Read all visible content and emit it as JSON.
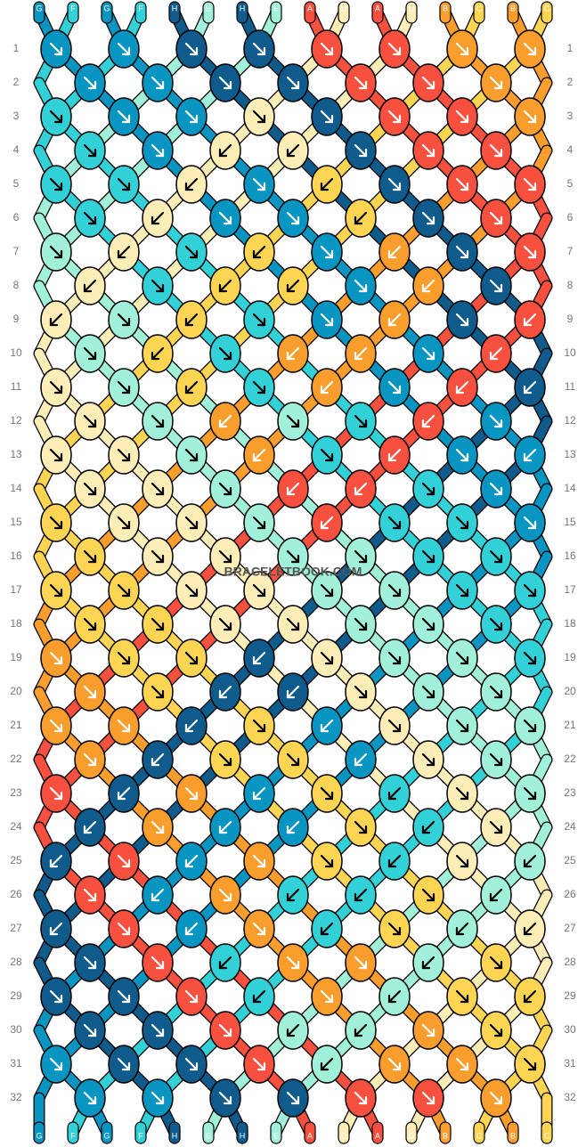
{
  "colors": {
    "A": "#f8503f",
    "B": "#f99e2d",
    "C": "#fdd552",
    "D": "#fdedb6",
    "E": "#a1f1da",
    "F": "#32d1d7",
    "G": "#0995c1",
    "H": "#0f5b8c"
  },
  "strands": {
    "top": [
      "G",
      "F",
      "G",
      "F",
      "H",
      "E",
      "H",
      "E",
      "A",
      "D",
      "A",
      "D",
      "B",
      "C",
      "B",
      "C"
    ],
    "bottom": [
      "G",
      "F",
      "G",
      "F",
      "H",
      "E",
      "H",
      "E",
      "A",
      "D",
      "A",
      "D",
      "B",
      "C",
      "B",
      "C"
    ]
  },
  "watermark": "BRACELETBOOK.COM",
  "rows": [
    {
      "label": 1,
      "knots": "GGHHAABB",
      "dirs": "ffffffff"
    },
    {
      "label": 2,
      "knots": "GGHHAAB",
      "dirs": "fffffff"
    },
    {
      "label": 3,
      "knots": "FGGDHAAB",
      "dirs": "ffffffff"
    },
    {
      "label": 4,
      "knots": "FGDDHAA",
      "dirs": "ffbbfff"
    },
    {
      "label": 5,
      "knots": "FFDGCHAA",
      "dirs": "ffbfbfff"
    },
    {
      "label": 6,
      "knots": "FDGGCHA",
      "dirs": "fbffbff"
    },
    {
      "label": 7,
      "knots": "EDFCGBHA",
      "dirs": "fbfbfbff"
    },
    {
      "label": 8,
      "knots": "DFCCGBH",
      "dirs": "bfbbfbf"
    },
    {
      "label": 9,
      "knots": "DECFGBHA",
      "dirs": "bfbffbfb"
    },
    {
      "label": 10,
      "knots": "ECFBBGA",
      "dirs": "fbfbbfb"
    },
    {
      "label": 11,
      "knots": "DECFBGAH",
      "dirs": "ffbfbfbb"
    },
    {
      "label": 12,
      "knots": "DEBEFAG",
      "dirs": "ffbffbf"
    },
    {
      "label": 13,
      "knots": "DDEBFAGG",
      "dirs": "fffbfbfb"
    },
    {
      "label": 14,
      "knots": "DDEAAFG",
      "dirs": "fffbbff"
    },
    {
      "label": 15,
      "knots": "CDDEAFFG",
      "dirs": "ffffbfff"
    },
    {
      "label": 16,
      "knots": "CDDEEFF",
      "dirs": "fffffff"
    },
    {
      "label": 17,
      "knots": "CCDDEEFF",
      "dirs": "ffffffff"
    },
    {
      "label": 18,
      "knots": "CCDDEEF",
      "dirs": "fffffff"
    },
    {
      "label": 19,
      "knots": "BCCHDEEF",
      "dirs": "fffbffff"
    },
    {
      "label": 20,
      "knots": "BCHHDEE",
      "dirs": "ffbbfff"
    },
    {
      "label": 21,
      "knots": "BBHCGDEE",
      "dirs": "ffbfbfff"
    },
    {
      "label": 22,
      "knots": "BHCCGDE",
      "dirs": "fbffbff"
    },
    {
      "label": 23,
      "knots": "AHBGCFDE",
      "dirs": "fbfbfbff"
    },
    {
      "label": 24,
      "knots": "HBGGCFD",
      "dirs": "bfbbfbf"
    },
    {
      "label": 25,
      "knots": "HAGBCFDE",
      "dirs": "bfbffbfb"
    },
    {
      "label": 26,
      "knots": "AGBFFCE",
      "dirs": "fbfbbfb"
    },
    {
      "label": 27,
      "knots": "HAGBFCED",
      "dirs": "bfbfbfbb"
    },
    {
      "label": 28,
      "knots": "HAFBBEC",
      "dirs": "ffbffbf"
    },
    {
      "label": 29,
      "knots": "HHAFBECC",
      "dirs": "fffbfbfb"
    },
    {
      "label": 30,
      "knots": "HHAEEBC",
      "dirs": "fffbbff"
    },
    {
      "label": 31,
      "knots": "GHHAEBBC",
      "dirs": "ffffbfff"
    },
    {
      "label": 32,
      "knots": "GGHHAAB",
      "dirs": "fffffff"
    }
  ]
}
